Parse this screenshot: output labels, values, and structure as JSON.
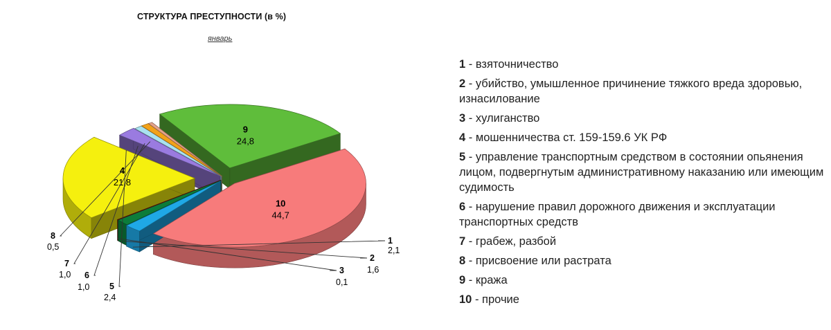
{
  "chart_data": {
    "type": "pie",
    "title": "СТРУКТУРА ПРЕСТУПНОСТИ (в %)",
    "subtitle": "январь",
    "slices": [
      {
        "id": "1",
        "value": 2.1,
        "label": "2,1",
        "color": "#1fa8e6"
      },
      {
        "id": "2",
        "value": 1.6,
        "label": "1,6",
        "color": "#0c7c3a"
      },
      {
        "id": "3",
        "value": 0.1,
        "label": "0,1",
        "color": "#7a1a12"
      },
      {
        "id": "4",
        "value": 21.8,
        "label": "21,8",
        "color": "#f5f00e"
      },
      {
        "id": "5",
        "value": 2.4,
        "label": "2,4",
        "color": "#9a7be0"
      },
      {
        "id": "6",
        "value": 1.0,
        "label": "1,0",
        "color": "#a9e2f0"
      },
      {
        "id": "7",
        "value": 1.0,
        "label": "1,0",
        "color": "#f2a21a"
      },
      {
        "id": "8",
        "value": 0.5,
        "label": "0,5",
        "color": "#e5a38a"
      },
      {
        "id": "9",
        "value": 24.8,
        "label": "24,8",
        "color": "#5fbd3b"
      },
      {
        "id": "10",
        "value": 44.7,
        "label": "44,7",
        "color": "#f77b7b"
      }
    ],
    "legend": [
      {
        "num": "1",
        "text": " - взяточничество"
      },
      {
        "num": "2",
        "text": " - убийство, умышленное причинение тяжкого вреда здоровью, изнасилование"
      },
      {
        "num": "3",
        "text": " - хулиганство"
      },
      {
        "num": "4",
        "text": " - мошенничества ст. 159-159.6 УК РФ"
      },
      {
        "num": "5",
        "text": " - управление транспортным средством в состоянии опьянения лицом, подвергнутым административному наказанию или имеющим судимость"
      },
      {
        "num": "6",
        "text": " - нарушение правил дорожного движения и эксплуатации транспортных средств"
      },
      {
        "num": "7",
        "text": " - грабеж, разбой"
      },
      {
        "num": "8",
        "text": " - присвоение или растрата"
      },
      {
        "num": "9",
        "text": " - кража"
      },
      {
        "num": "10",
        "text": " - прочие"
      }
    ]
  }
}
